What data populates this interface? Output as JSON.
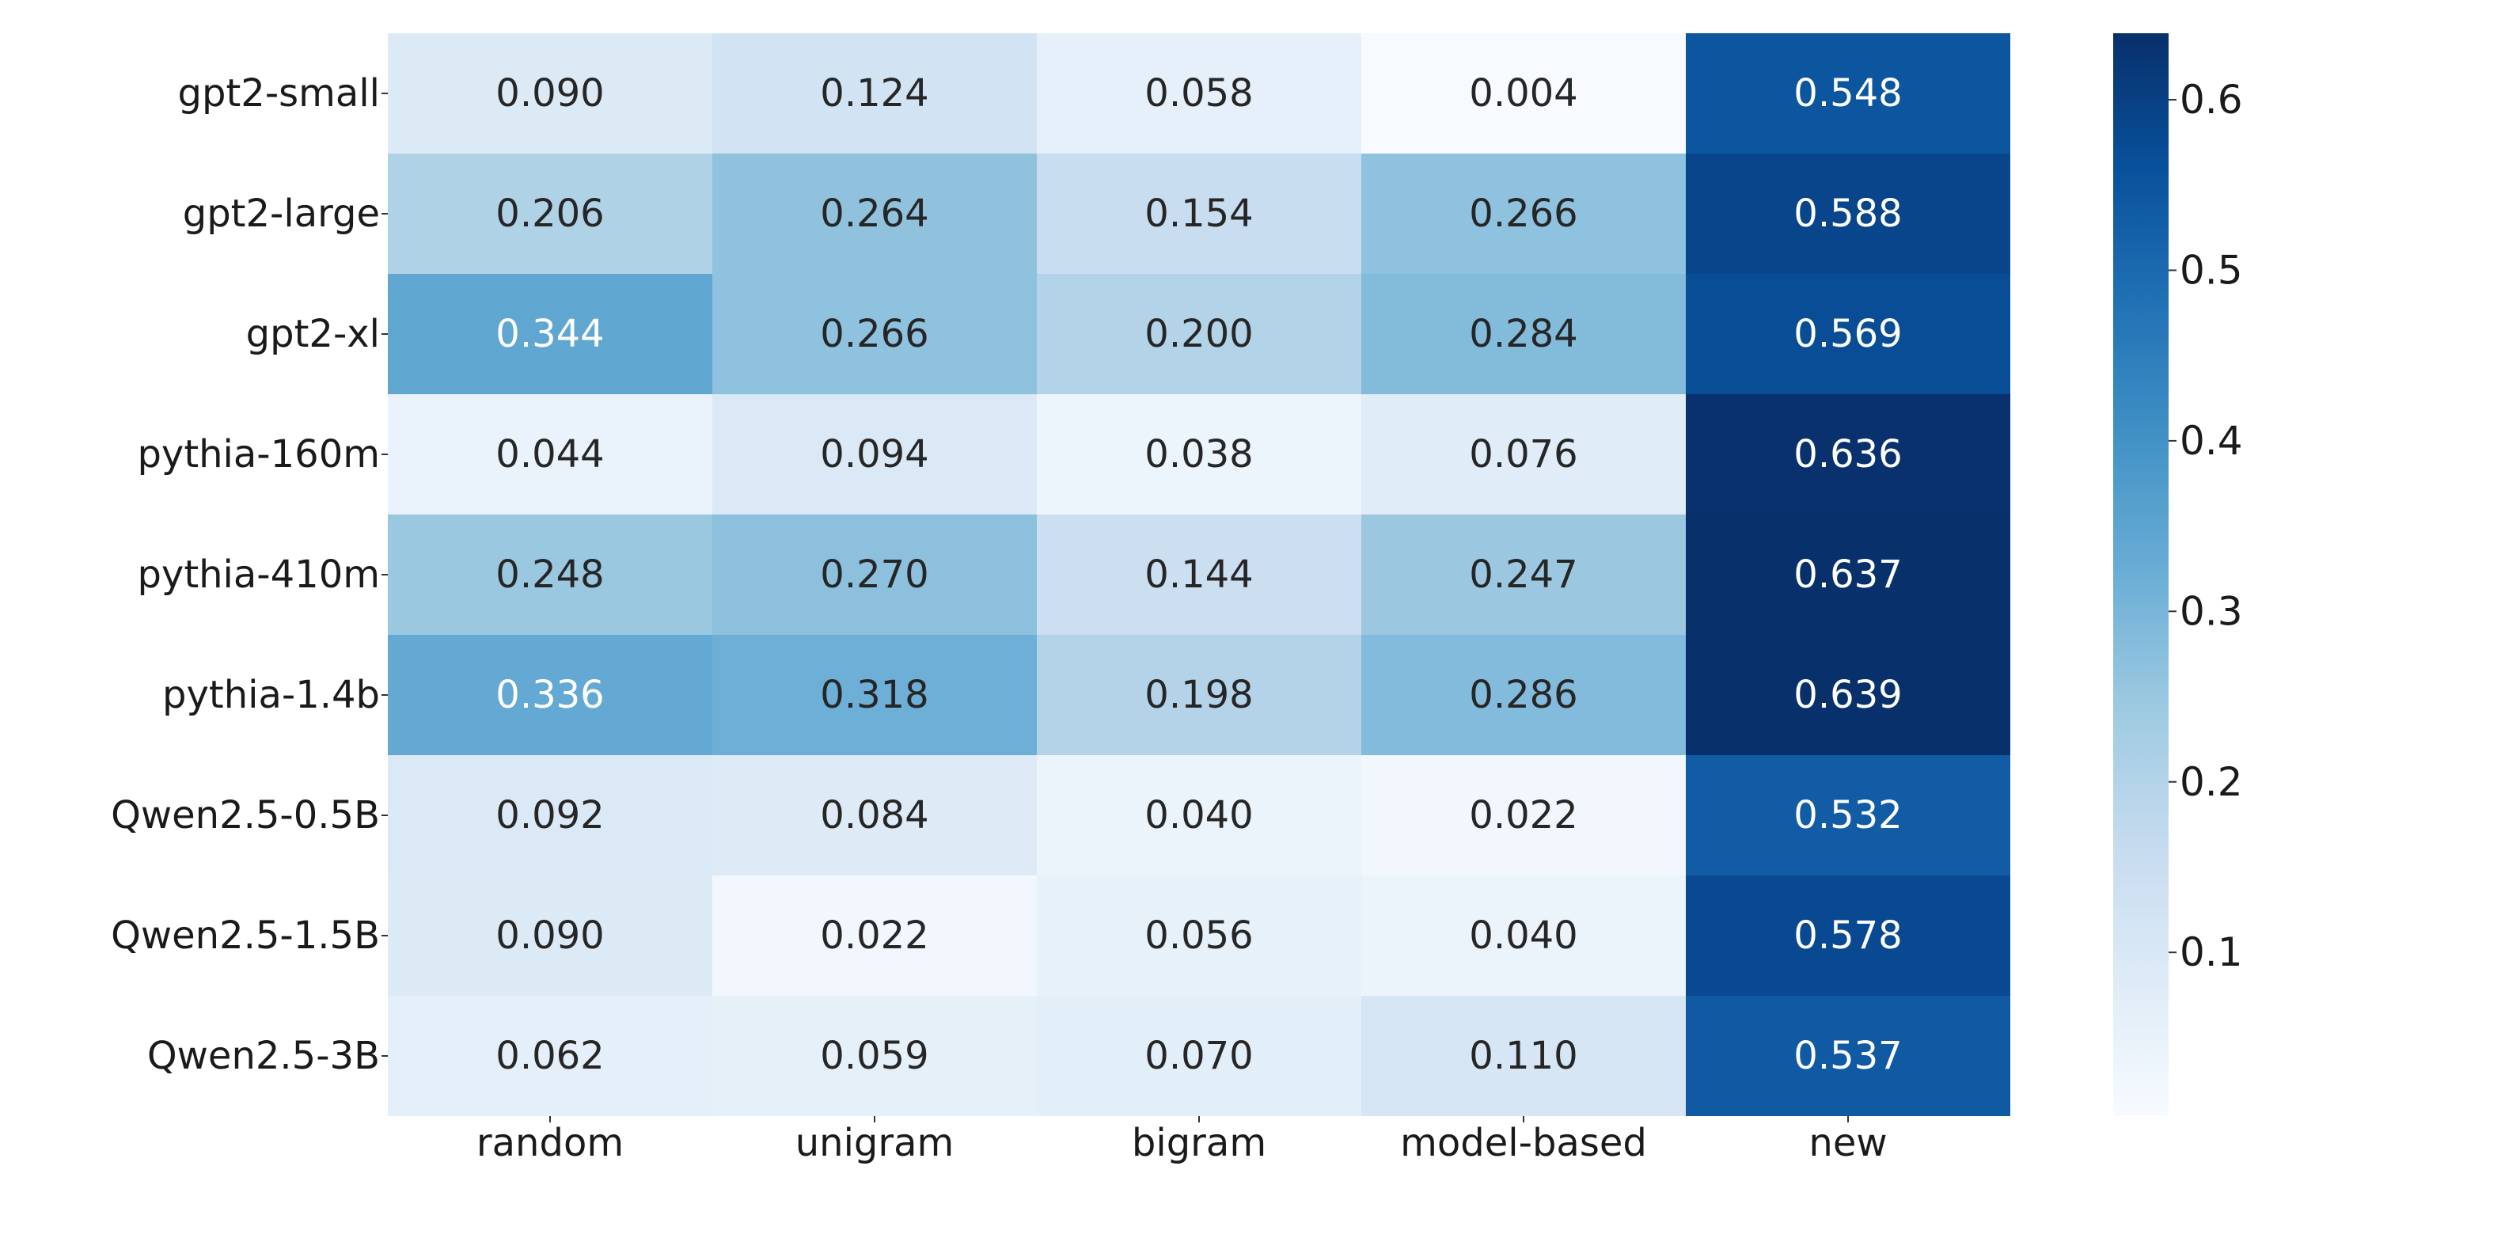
{
  "chart_data": {
    "type": "heatmap",
    "title": "",
    "xlabel": "",
    "ylabel": "",
    "colormap": "Blues",
    "value_format": "3 decimals",
    "rows": [
      "gpt2-small",
      "gpt2-large",
      "gpt2-xl",
      "pythia-160m",
      "pythia-410m",
      "pythia-1.4b",
      "Qwen2.5-0.5B",
      "Qwen2.5-1.5B",
      "Qwen2.5-3B"
    ],
    "columns": [
      "random",
      "unigram",
      "bigram",
      "model-based",
      "new"
    ],
    "values": [
      [
        0.09,
        0.124,
        0.058,
        0.004,
        0.548
      ],
      [
        0.206,
        0.264,
        0.154,
        0.266,
        0.588
      ],
      [
        0.344,
        0.266,
        0.2,
        0.284,
        0.569
      ],
      [
        0.044,
        0.094,
        0.038,
        0.076,
        0.636
      ],
      [
        0.248,
        0.27,
        0.144,
        0.247,
        0.637
      ],
      [
        0.336,
        0.318,
        0.198,
        0.286,
        0.639
      ],
      [
        0.092,
        0.084,
        0.04,
        0.022,
        0.532
      ],
      [
        0.09,
        0.022,
        0.056,
        0.04,
        0.578
      ],
      [
        0.062,
        0.059,
        0.07,
        0.11,
        0.537
      ]
    ],
    "colorbar": {
      "range": [
        0.004,
        0.639
      ],
      "ticks": [
        0.1,
        0.2,
        0.3,
        0.4,
        0.5,
        0.6
      ],
      "tick_labels": [
        "0.1",
        "0.2",
        "0.3",
        "0.4",
        "0.5",
        "0.6"
      ]
    }
  }
}
